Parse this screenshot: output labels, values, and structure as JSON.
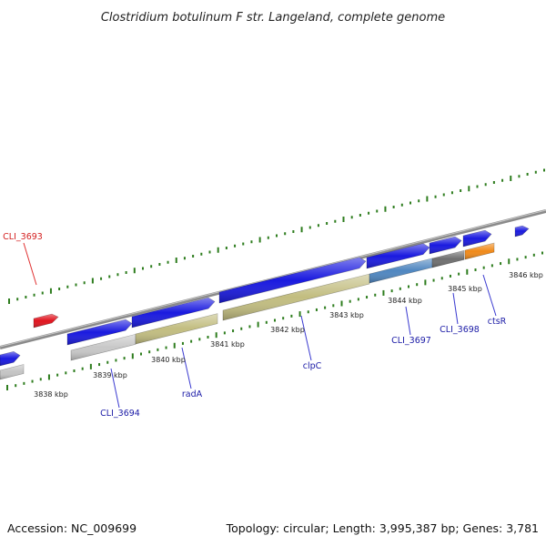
{
  "title": "Clostridium botulinum F str. Langeland, complete genome",
  "footer": {
    "accession": "Accession: NC_009699",
    "summary": "Topology: circular; Length: 3,995,387 bp; Genes: 3,781"
  },
  "colors": {
    "backbone": "#8a8a8a",
    "dots": "#2e7d1e",
    "label_blue": "#1a1aa6",
    "label_red": "#d42020",
    "leader_blue": "#3a3ad0",
    "leader_red": "#e03030"
  },
  "kbp_ticks": [
    "3838 kbp",
    "3839 kbp",
    "3840 kbp",
    "3841 kbp",
    "3842 kbp",
    "3843 kbp",
    "3844 kbp",
    "3845 kbp",
    "3846 kbp"
  ],
  "gene_labels": [
    {
      "id": "CLI_3693",
      "text": "CLI_3693",
      "color": "red"
    },
    {
      "id": "CLI_3694",
      "text": "CLI_3694",
      "color": "blue"
    },
    {
      "id": "radA",
      "text": "radA",
      "color": "blue"
    },
    {
      "id": "clpC",
      "text": "clpC",
      "color": "blue"
    },
    {
      "id": "CLI_3697",
      "text": "CLI_3697",
      "color": "blue"
    },
    {
      "id": "CLI_3698",
      "text": "CLI_3698",
      "color": "blue"
    },
    {
      "id": "ctsR",
      "text": "ctsR",
      "color": "blue"
    }
  ],
  "genes": [
    {
      "name": "red-gene",
      "color": "#e0141e"
    },
    {
      "name": "left-edge-cds",
      "color": "#1a1adf"
    },
    {
      "name": "left-edge-gene",
      "color": "#c4c4c4"
    },
    {
      "name": "CLI_3694-cds",
      "color": "#1a1adf"
    },
    {
      "name": "CLI_3694-gene",
      "color": "#c8c8c8"
    },
    {
      "name": "radA-cds",
      "color": "#1a1adf"
    },
    {
      "name": "radA-gene",
      "color": "#c2bd80"
    },
    {
      "name": "clpC-cds",
      "color": "#1a1adf"
    },
    {
      "name": "clpC-gene",
      "color": "#c2bd80"
    },
    {
      "name": "CLI_3697-cds",
      "color": "#1a1adf"
    },
    {
      "name": "CLI_3697-gene",
      "color": "#4f86c0"
    },
    {
      "name": "CLI_3698-cds",
      "color": "#1a1adf"
    },
    {
      "name": "CLI_3698-gene",
      "color": "#6f6f6f"
    },
    {
      "name": "ctsR-cds",
      "color": "#1a1adf"
    },
    {
      "name": "ctsR-gene",
      "color": "#f08a1a"
    },
    {
      "name": "right-top-cds",
      "color": "#1a1adf"
    }
  ]
}
